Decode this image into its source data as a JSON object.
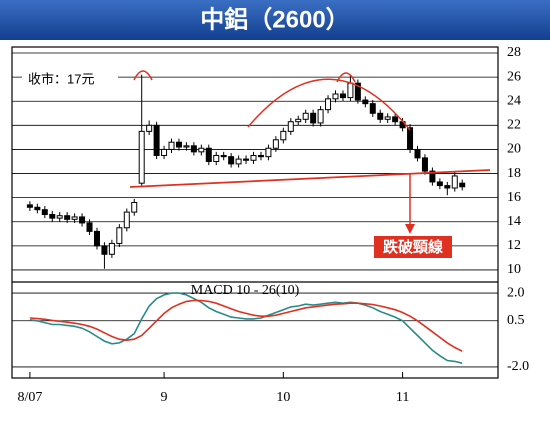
{
  "chart_data": {
    "type": "candlestick",
    "title": "中鋁（2600）",
    "price_note": "收市：17元",
    "annotation": "跌破頸線",
    "open": [
      15.4,
      15.2,
      15.0,
      14.6,
      14.3,
      14.5,
      14.2,
      14.4,
      13.9,
      13.2,
      12.0,
      11.3,
      12.2,
      13.5,
      14.8,
      17.2,
      21.5,
      22.0,
      19.5,
      20.0,
      20.6,
      20.2,
      20.3,
      19.8,
      20.1,
      19.0,
      19.5,
      19.4,
      18.8,
      19.2,
      19.1,
      19.5,
      19.4,
      20.1,
      20.8,
      21.5,
      22.3,
      22.5,
      23.0,
      22.2,
      23.3,
      24.2,
      24.6,
      24.3,
      25.5,
      24.1,
      23.8,
      23.0,
      22.5,
      22.7,
      22.3,
      21.8,
      20.0,
      19.3,
      18.2,
      17.3,
      17.0,
      16.8,
      17.2
    ],
    "high": [
      15.7,
      15.5,
      15.3,
      14.9,
      14.8,
      14.8,
      14.7,
      14.7,
      14.2,
      13.5,
      12.3,
      12.5,
      13.8,
      15.1,
      15.9,
      26.2,
      22.4,
      22.3,
      20.3,
      20.9,
      20.9,
      20.6,
      20.6,
      20.4,
      20.4,
      19.8,
      19.8,
      19.7,
      19.5,
      19.5,
      19.8,
      19.8,
      20.4,
      21.1,
      21.8,
      22.6,
      22.8,
      23.3,
      23.3,
      23.6,
      24.5,
      24.9,
      24.9,
      26.2,
      25.8,
      24.4,
      24.1,
      23.3,
      23.0,
      23.0,
      22.6,
      22.1,
      20.3,
      19.6,
      18.5,
      17.6,
      17.3,
      18.1,
      17.5
    ],
    "low": [
      14.9,
      14.7,
      14.3,
      14.0,
      14.0,
      13.9,
      13.9,
      13.6,
      12.9,
      11.7,
      10.1,
      11.0,
      11.9,
      13.2,
      14.5,
      17.0,
      21.2,
      19.2,
      19.2,
      19.7,
      19.9,
      19.9,
      19.5,
      19.5,
      18.7,
      18.7,
      19.1,
      18.5,
      18.5,
      18.8,
      18.8,
      19.1,
      19.1,
      19.8,
      20.5,
      21.2,
      22.0,
      22.2,
      21.9,
      21.9,
      23.0,
      23.9,
      24.0,
      24.0,
      23.8,
      23.5,
      22.7,
      22.2,
      22.2,
      22.0,
      21.5,
      19.7,
      19.0,
      17.9,
      17.0,
      16.7,
      16.2,
      16.5,
      16.6
    ],
    "close": [
      15.2,
      15.0,
      14.6,
      14.3,
      14.5,
      14.2,
      14.4,
      13.9,
      13.2,
      12.0,
      11.3,
      12.2,
      13.5,
      14.8,
      15.6,
      21.5,
      22.0,
      19.5,
      20.0,
      20.6,
      20.2,
      20.3,
      19.8,
      20.1,
      19.0,
      19.5,
      19.4,
      18.8,
      19.2,
      19.1,
      19.5,
      19.4,
      20.1,
      20.8,
      21.5,
      22.3,
      22.5,
      23.0,
      22.2,
      23.3,
      24.2,
      24.6,
      24.3,
      25.5,
      24.1,
      23.8,
      23.0,
      22.5,
      22.7,
      22.3,
      21.8,
      20.0,
      19.3,
      18.2,
      17.3,
      17.0,
      16.8,
      17.8,
      16.9
    ],
    "xlim": [
      -2.4,
      62.8
    ],
    "xticks": [
      {
        "value": 0,
        "label": "8/07"
      },
      {
        "value": 18,
        "label": "9"
      },
      {
        "value": 34,
        "label": "10"
      },
      {
        "value": 50,
        "label": "11"
      }
    ],
    "ylim": [
      9,
      28.5
    ],
    "yticks": [
      10,
      12,
      14,
      16,
      18,
      20,
      22,
      24,
      26,
      28
    ],
    "grid": true,
    "macd": {
      "label": "MACD 10 - 26(10)",
      "y2lim": [
        -2.6,
        2.6
      ],
      "y2ticks": [
        {
          "value": 2,
          "label": "2.0"
        },
        0.5,
        {
          "value": -2,
          "label": "-2.0"
        }
      ],
      "series": [
        {
          "color": "#2a8a8a",
          "values": [
            0.55,
            0.5,
            0.4,
            0.3,
            0.3,
            0.25,
            0.2,
            0.1,
            -0.1,
            -0.35,
            -0.6,
            -0.75,
            -0.7,
            -0.5,
            -0.2,
            0.6,
            1.3,
            1.7,
            1.9,
            2.0,
            2.0,
            1.9,
            1.7,
            1.5,
            1.2,
            1.0,
            0.85,
            0.7,
            0.65,
            0.6,
            0.6,
            0.65,
            0.8,
            0.95,
            1.1,
            1.25,
            1.3,
            1.4,
            1.35,
            1.4,
            1.45,
            1.5,
            1.45,
            1.5,
            1.45,
            1.35,
            1.2,
            1.0,
            0.85,
            0.7,
            0.5,
            0.1,
            -0.3,
            -0.7,
            -1.1,
            -1.4,
            -1.65,
            -1.7,
            -1.8
          ]
        },
        {
          "color": "#e03020",
          "values": [
            0.65,
            0.62,
            0.58,
            0.52,
            0.47,
            0.42,
            0.37,
            0.3,
            0.2,
            0.05,
            -0.15,
            -0.35,
            -0.5,
            -0.55,
            -0.5,
            -0.3,
            0.1,
            0.5,
            0.9,
            1.2,
            1.4,
            1.55,
            1.6,
            1.6,
            1.55,
            1.45,
            1.3,
            1.15,
            1.0,
            0.9,
            0.8,
            0.75,
            0.75,
            0.8,
            0.9,
            1.0,
            1.1,
            1.2,
            1.25,
            1.3,
            1.35,
            1.4,
            1.42,
            1.45,
            1.45,
            1.42,
            1.38,
            1.3,
            1.2,
            1.1,
            0.95,
            0.75,
            0.5,
            0.2,
            -0.1,
            -0.4,
            -0.7,
            -0.95,
            -1.15
          ]
        }
      ]
    }
  }
}
